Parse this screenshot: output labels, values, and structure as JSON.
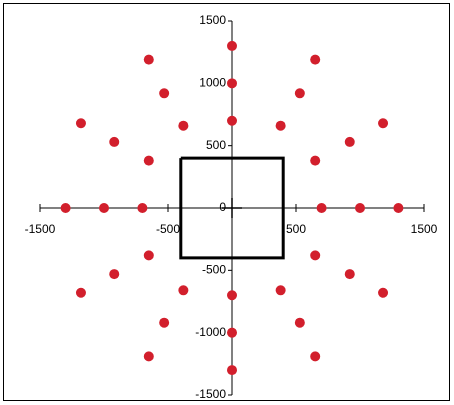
{
  "chart_data": {
    "type": "scatter",
    "xlim": [
      -1500,
      1500
    ],
    "ylim": [
      -1500,
      1500
    ],
    "xticks": [
      -1500,
      -500,
      500,
      1500
    ],
    "yticks": [
      -1500,
      -1000,
      -500,
      0,
      500,
      1000,
      1500
    ],
    "series": [
      {
        "type": "scatter",
        "color": "#d21f2c",
        "x": [
          0,
          0,
          -700,
          700,
          -380,
          380,
          -650,
          650,
          -650,
          650,
          -380,
          380,
          0,
          0,
          -1000,
          1000,
          -530,
          530,
          -920,
          920,
          -920,
          920,
          -530,
          530,
          0,
          0,
          -1300,
          1300,
          -650,
          650,
          -1180,
          1180,
          -1180,
          1180,
          -650,
          650
        ],
        "y": [
          700,
          -700,
          0,
          0,
          660,
          660,
          380,
          380,
          -380,
          -380,
          -660,
          -660,
          1000,
          -1000,
          0,
          0,
          920,
          920,
          530,
          530,
          -530,
          -530,
          -920,
          -920,
          1300,
          -1300,
          0,
          0,
          1190,
          1190,
          680,
          680,
          -680,
          -680,
          -1190,
          -1190
        ]
      },
      {
        "type": "line",
        "color": "#000000",
        "x": [
          -400,
          400,
          400,
          -400,
          -400
        ],
        "y": [
          400,
          400,
          -400,
          -400,
          400
        ]
      }
    ]
  }
}
